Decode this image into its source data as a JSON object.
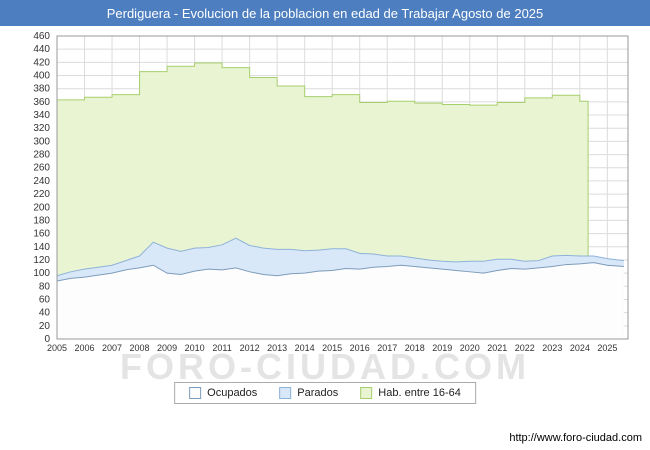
{
  "title": "Perdiguera - Evolucion de la poblacion en edad de Trabajar Agosto de 2025",
  "watermark": "FORO-CIUDAD.COM",
  "footer_url": "http://www.foro-ciudad.com",
  "colors": {
    "title_bar_bg": "#4d7ebf",
    "title_text": "#ffffff",
    "grid": "#dcdcdc",
    "plot_border": "#999999",
    "axis_text": "#333333"
  },
  "legend": {
    "items": [
      {
        "label": "Ocupados",
        "fill": "#fdfdfd",
        "stroke": "#7d9cbb"
      },
      {
        "label": "Parados",
        "fill": "#d9e8f8",
        "stroke": "#8fb2d9"
      },
      {
        "label": "Hab. entre 16-64",
        "fill": "#e8f4d2",
        "stroke": "#a8cf6e"
      }
    ]
  },
  "chart_data": {
    "type": "area",
    "title": "Perdiguera - Evolucion de la poblacion en edad de Trabajar Agosto de 2025",
    "xlabel": "",
    "ylabel": "",
    "ylim": [
      0,
      460
    ],
    "ytick": 20,
    "x_min": 2005,
    "x_max": 2025.75,
    "x_tick_years": [
      2005,
      2006,
      2007,
      2008,
      2009,
      2010,
      2011,
      2012,
      2013,
      2014,
      2015,
      2016,
      2017,
      2018,
      2019,
      2020,
      2021,
      2022,
      2023,
      2024,
      2025
    ],
    "grid": true,
    "legend_position": "bottom",
    "series": [
      {
        "name": "Hab. entre 16-64",
        "mode": "step",
        "fill": "#e8f4d2",
        "stroke": "#a8cf6e",
        "x": [
          2005,
          2006,
          2007,
          2008,
          2009,
          2010,
          2011,
          2012,
          2013,
          2014,
          2015,
          2016,
          2017,
          2018,
          2019,
          2020,
          2021,
          2022,
          2023,
          2024
        ],
        "values": [
          363,
          367,
          371,
          406,
          414,
          419,
          412,
          397,
          384,
          368,
          371,
          359,
          361,
          358,
          356,
          355,
          359,
          366,
          370,
          361
        ],
        "end_x": 2024.3
      },
      {
        "name": "Parados",
        "mode": "stacked-on-ocupados",
        "fill": "#d9e8f8",
        "stroke": "#8fb2d9",
        "x": [
          2005,
          2005.5,
          2006,
          2006.5,
          2007,
          2007.5,
          2008,
          2008.5,
          2009,
          2009.5,
          2010,
          2010.5,
          2011,
          2011.5,
          2012,
          2012.5,
          2013,
          2013.5,
          2014,
          2014.5,
          2015,
          2015.5,
          2016,
          2016.5,
          2017,
          2017.5,
          2018,
          2018.5,
          2019,
          2019.5,
          2020,
          2020.5,
          2021,
          2021.5,
          2022,
          2022.5,
          2023,
          2023.5,
          2024,
          2024.5,
          2025,
          2025.6
        ],
        "values": [
          8,
          10,
          12,
          12,
          12,
          14,
          18,
          35,
          38,
          35,
          35,
          33,
          38,
          45,
          40,
          40,
          40,
          37,
          34,
          32,
          33,
          30,
          24,
          20,
          16,
          14,
          13,
          12,
          12,
          13,
          16,
          18,
          17,
          14,
          12,
          11,
          16,
          14,
          12,
          10,
          10,
          9
        ]
      },
      {
        "name": "Ocupados",
        "mode": "area",
        "fill": "#fdfdfd",
        "stroke": "#7d9cbb",
        "x": [
          2005,
          2005.5,
          2006,
          2006.5,
          2007,
          2007.5,
          2008,
          2008.5,
          2009,
          2009.5,
          2010,
          2010.5,
          2011,
          2011.5,
          2012,
          2012.5,
          2013,
          2013.5,
          2014,
          2014.5,
          2015,
          2015.5,
          2016,
          2016.5,
          2017,
          2017.5,
          2018,
          2018.5,
          2019,
          2019.5,
          2020,
          2020.5,
          2021,
          2021.5,
          2022,
          2022.5,
          2023,
          2023.5,
          2024,
          2024.5,
          2025,
          2025.6
        ],
        "values": [
          88,
          92,
          94,
          97,
          100,
          105,
          108,
          112,
          100,
          98,
          103,
          106,
          105,
          108,
          102,
          98,
          96,
          99,
          100,
          103,
          104,
          107,
          106,
          109,
          110,
          112,
          110,
          108,
          106,
          104,
          102,
          100,
          104,
          107,
          106,
          108,
          110,
          113,
          114,
          116,
          112,
          110
        ]
      }
    ]
  }
}
